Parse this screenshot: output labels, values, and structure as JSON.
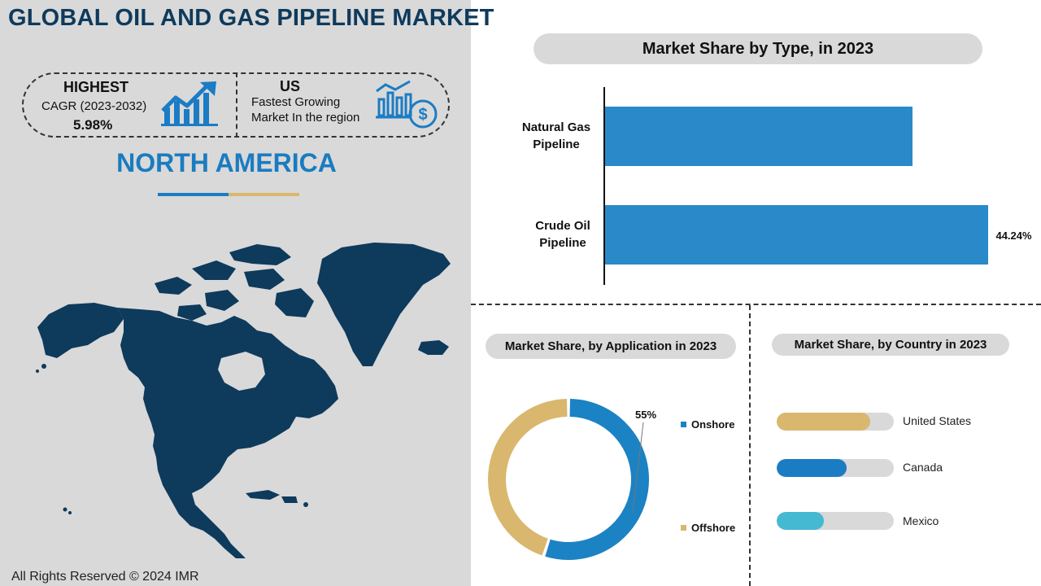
{
  "header": {
    "title": "GLOBAL OIL AND GAS PIPELINE MARKET"
  },
  "highlights": {
    "highest_label": "HIGHEST",
    "cagr_label": "CAGR (2023-2032)",
    "cagr_value": "5.98%",
    "country": "US",
    "country_desc_line1": "Fastest Growing",
    "country_desc_line2": "Market In the region",
    "growth_icon": "growth-chart-icon",
    "finance_icon": "dollar-chart-icon"
  },
  "region": {
    "title": "NORTH AMERICA",
    "map_icon": "north-america-map"
  },
  "colors": {
    "navy": "#0e3a5c",
    "blue": "#2a8ac9",
    "gold": "#d9b76e",
    "teal": "#45b8d2",
    "pill": "#d9d9d9"
  },
  "footer": {
    "copyright": "All Rights Reserved © 2024 IMR"
  },
  "chart_data": [
    {
      "type": "bar",
      "orientation": "horizontal",
      "title": "Market Share by Type,  in 2023",
      "categories": [
        "Natural Gas Pipeline",
        "Crude Oil Pipeline"
      ],
      "category_lines": [
        [
          "Natural Gas",
          "Pipeline"
        ],
        [
          "Crude Oil",
          "Pipeline"
        ]
      ],
      "values": [
        35.5,
        44.24
      ],
      "data_labels": [
        "",
        "44.24%"
      ],
      "xlim": [
        0,
        50
      ]
    },
    {
      "type": "pie",
      "donut": true,
      "title": "Market Share, by Application in 2023",
      "categories": [
        "Onshore",
        "Offshore"
      ],
      "values": [
        55,
        45
      ],
      "data_labels": [
        "55%",
        ""
      ],
      "colors": [
        "#1b82c4",
        "#d9b76e"
      ]
    },
    {
      "type": "bar",
      "orientation": "horizontal",
      "title": "Market Share, by Country in 2023",
      "categories": [
        "United States",
        "Canada",
        "Mexico"
      ],
      "values": [
        80,
        60,
        40
      ],
      "xlim": [
        0,
        100
      ],
      "colors": [
        "#d9b76e",
        "#1b7cc4",
        "#45b8d2"
      ]
    }
  ]
}
